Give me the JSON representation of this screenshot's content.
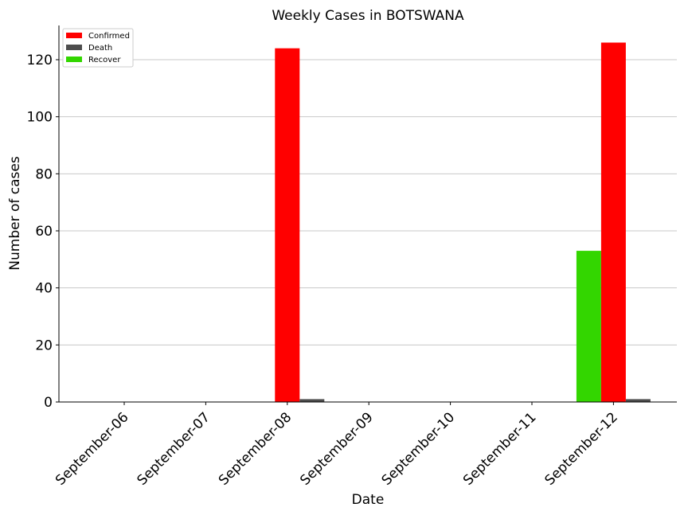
{
  "chart_data": {
    "type": "bar",
    "title": "Weekly Cases in BOTSWANA",
    "xlabel": "Date",
    "ylabel": "Number of cases",
    "categories": [
      "September-06",
      "September-07",
      "September-08",
      "September-09",
      "September-10",
      "September-11",
      "September-12"
    ],
    "series": [
      {
        "name": "Confirmed",
        "color": "#ff0000",
        "values": [
          0,
          0,
          124,
          0,
          0,
          0,
          126
        ]
      },
      {
        "name": "Death",
        "color": "#4d4d4d",
        "values": [
          0,
          0,
          1,
          0,
          0,
          0,
          1
        ]
      },
      {
        "name": "Recover",
        "color": "#33d600",
        "values": [
          0,
          0,
          0,
          0,
          0,
          0,
          53
        ]
      }
    ],
    "ylim": [
      0,
      132
    ],
    "yticks": [
      0,
      20,
      40,
      60,
      80,
      100,
      120
    ],
    "grid": "horizontal",
    "legend": "top-left"
  }
}
